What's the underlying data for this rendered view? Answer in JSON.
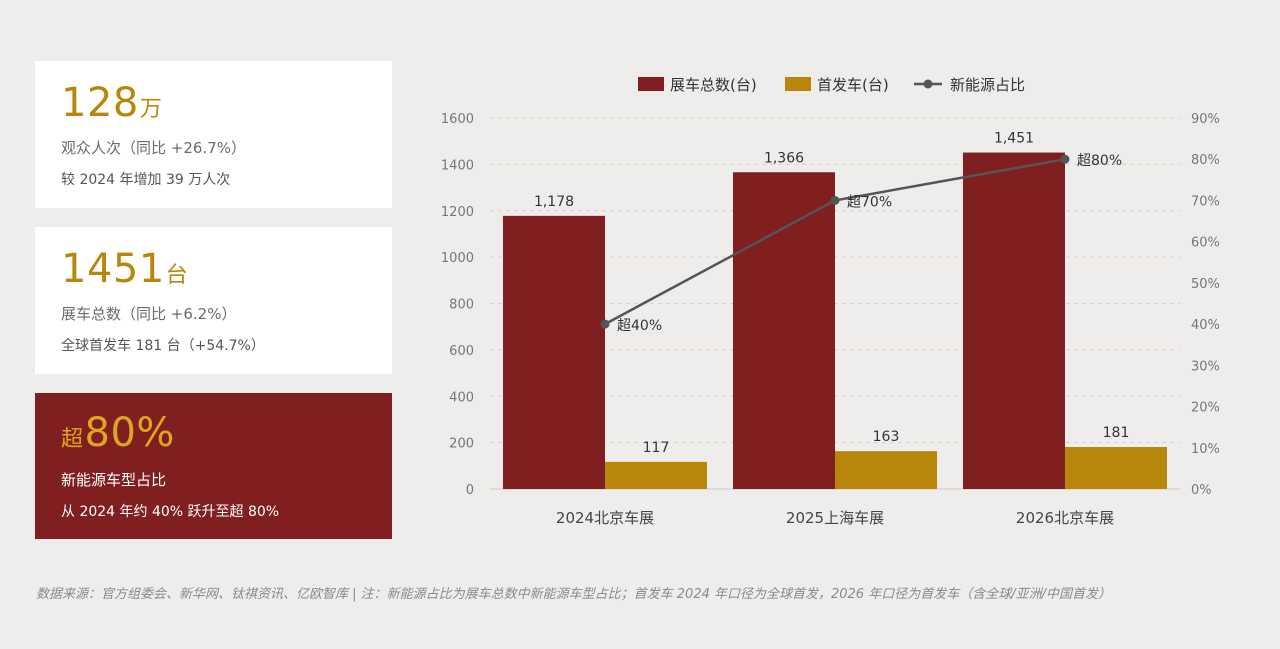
{
  "cards": [
    {
      "big": "128",
      "unit": "万",
      "line1": "观众人次（同比 +26.7%）",
      "line2": "较 2024 年增加 39 万人次"
    },
    {
      "big": "1451",
      "unit": "台",
      "line1": "展车总数（同比 +6.2%）",
      "line2": "全球首发车 181 台（+54.7%）"
    },
    {
      "prefix": "超",
      "big": "80%",
      "line1": "新能源车型占比",
      "line2": "从 2024 年约 40% 跃升至超 80%"
    }
  ],
  "footnote": "数据来源：官方组委会、新华网、钛祺资讯、亿欧智库 | 注：新能源占比为展车总数中新能源车型占比；首发车 2024 年口径为全球首发，2026 年口径为首发车（含全球/亚洲/中国首发）",
  "colors": {
    "total": "#7f1f1f",
    "debut": "#b8860b",
    "line": "#555555",
    "cardRed": "#7f1f1f",
    "accent": "#b8860b"
  },
  "chart_data": {
    "type": "bar",
    "categories": [
      "2024北京车展",
      "2025上海车展",
      "2026北京车展"
    ],
    "series": [
      {
        "name": "展车总数(台)",
        "type": "bar",
        "values": [
          1178,
          1366,
          1451
        ],
        "labels": [
          "1,178",
          "1,366",
          "1,451"
        ]
      },
      {
        "name": "首发车(台)",
        "type": "bar",
        "values": [
          117,
          163,
          181
        ],
        "labels": [
          "117",
          "163",
          "181"
        ]
      },
      {
        "name": "新能源占比",
        "type": "line",
        "axis": "right",
        "values": [
          40,
          70,
          80
        ],
        "labels": [
          "超40%",
          "超70%",
          "超80%"
        ]
      }
    ],
    "ylim": [
      0,
      1600
    ],
    "yticks": [
      "0",
      "200",
      "400",
      "600",
      "800",
      "1000",
      "1200",
      "1400",
      "1600"
    ],
    "y2lim": [
      0,
      90
    ],
    "y2ticks": [
      "0%",
      "10%",
      "20%",
      "30%",
      "40%",
      "50%",
      "60%",
      "70%",
      "80%",
      "90%"
    ],
    "grid": true,
    "legend": "top"
  }
}
